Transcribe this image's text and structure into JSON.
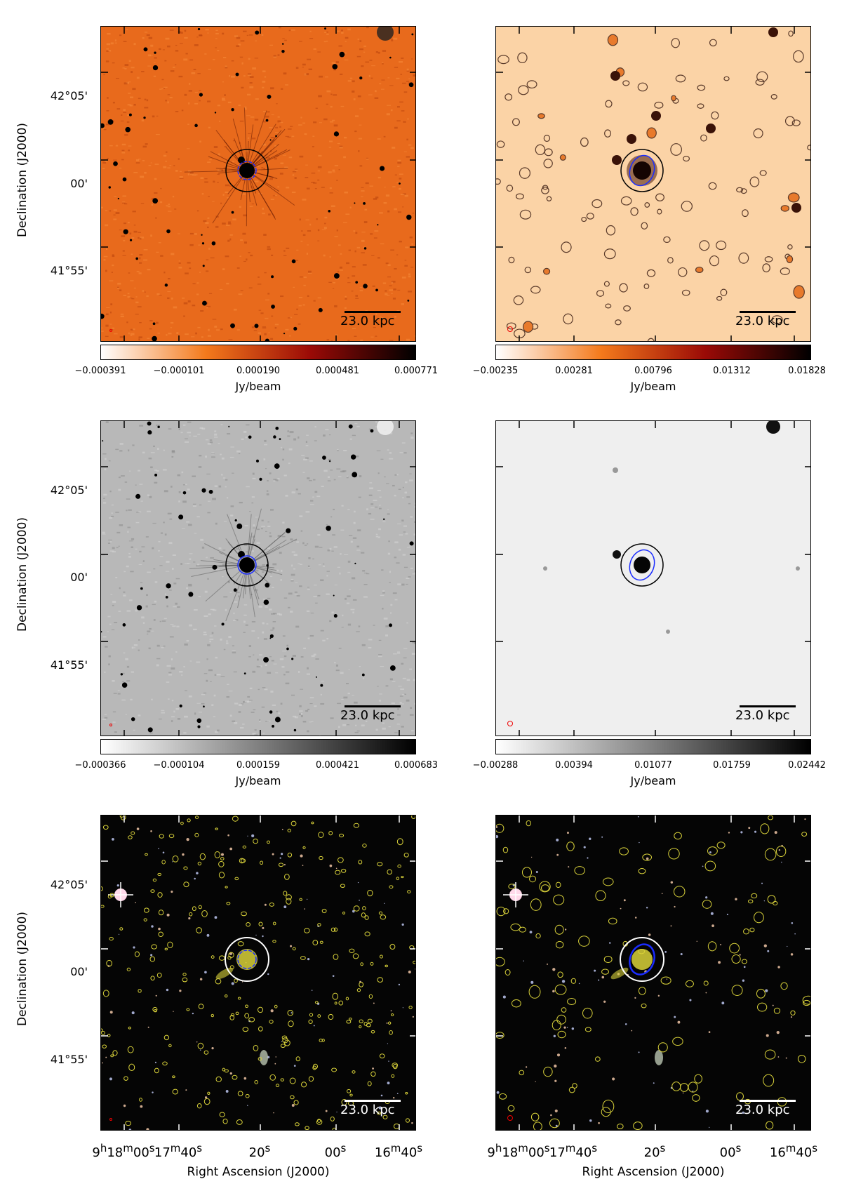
{
  "axes": {
    "ylabel": "Declination (J2000)",
    "xlabel": "Right Ascension (J2000)",
    "dec_ticks": [
      "42°05'",
      "00'",
      "41°55'"
    ],
    "ra_ticks": [
      {
        "h": "9",
        "m": "18",
        "s": "00"
      },
      {
        "m": "17",
        "s": "40"
      },
      {
        "s": "20"
      },
      {
        "s": "00"
      },
      {
        "m": "16",
        "s": "40"
      }
    ]
  },
  "scalebar": "23.0 kpc",
  "colorbars": [
    {
      "ticks": [
        "−0.000391",
        "−0.000101",
        "0.000190",
        "0.000481",
        "0.000771"
      ],
      "unit": "Jy/beam",
      "colors": [
        "#ffffff",
        "#f47a1c",
        "#9a0a06",
        "#000000"
      ]
    },
    {
      "ticks": [
        "−0.00235",
        "0.00281",
        "0.00796",
        "0.01312",
        "0.01828"
      ],
      "unit": "Jy/beam",
      "colors": [
        "#ffffff",
        "#f47a1c",
        "#9a0a06",
        "#000000"
      ]
    },
    {
      "ticks": [
        "−0.000366",
        "−0.000104",
        "0.000159",
        "0.000421",
        "0.000683"
      ],
      "unit": "Jy/beam",
      "colors": [
        "#ffffff",
        "#808080",
        "#000000"
      ]
    },
    {
      "ticks": [
        "−0.00288",
        "0.00394",
        "0.01077",
        "0.01759",
        "0.02442"
      ],
      "unit": "Jy/beam",
      "colors": [
        "#ffffff",
        "#808080",
        "#000000"
      ]
    }
  ],
  "panels": [
    {
      "id": "r1-left",
      "style": "heat-noisy",
      "bg": "#e86a1c"
    },
    {
      "id": "r1-right",
      "style": "heat-smooth-contours",
      "bg": "#fbd3a6"
    },
    {
      "id": "r2-left",
      "style": "gray-noisy",
      "bg": "#b8b8b8"
    },
    {
      "id": "r2-right",
      "style": "gray-smooth",
      "bg": "#efefef"
    },
    {
      "id": "r3-left",
      "style": "optical-dense-contours",
      "bg": "#050505"
    },
    {
      "id": "r3-right",
      "style": "optical-smooth-contours",
      "bg": "#050505"
    }
  ]
}
